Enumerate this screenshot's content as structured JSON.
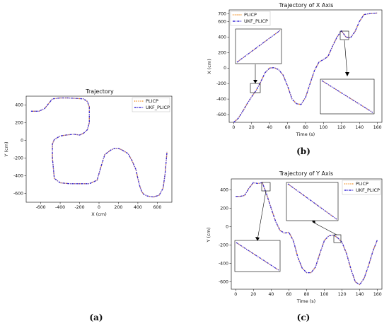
{
  "colors": {
    "plicp": "#f08a1a",
    "ukf": "#3a2bd6"
  },
  "panels": {
    "a": "(a)",
    "b": "(b)",
    "c": "(c)"
  },
  "chart_data": [
    {
      "id": "a",
      "type": "line",
      "title": "Trajectory",
      "xlabel": "X (cm)",
      "ylabel": "Y (cm)",
      "xlim": [
        -750,
        750
      ],
      "ylim": [
        -700,
        500
      ],
      "xticks": [
        -600,
        -400,
        -200,
        0,
        200,
        400,
        600
      ],
      "yticks": [
        400,
        200,
        0,
        -200,
        -400,
        -600
      ],
      "legend_position": "top-right",
      "series": [
        {
          "name": "PLICP",
          "x": [
            -700,
            -620,
            -560,
            -480,
            -400,
            -320,
            -240,
            -160,
            -120,
            -100,
            -100,
            -120,
            -160,
            -200,
            -260,
            -340,
            -400,
            -460,
            -480,
            -480,
            -460,
            -400,
            -300,
            -200,
            -100,
            -20,
            20,
            60,
            120,
            160,
            200,
            240,
            300,
            340,
            380,
            400,
            420,
            440,
            460,
            500,
            560,
            620,
            660,
            680,
            700
          ],
          "y": [
            330,
            330,
            360,
            470,
            480,
            480,
            475,
            470,
            440,
            380,
            200,
            120,
            80,
            60,
            70,
            60,
            50,
            10,
            -40,
            -200,
            -430,
            -480,
            -490,
            -490,
            -490,
            -450,
            -300,
            -160,
            -110,
            -90,
            -90,
            -110,
            -150,
            -230,
            -330,
            -430,
            -520,
            -580,
            -610,
            -630,
            -640,
            -620,
            -540,
            -380,
            -130
          ]
        },
        {
          "name": "UKF_PLICP",
          "x": [
            -700,
            -620,
            -560,
            -480,
            -400,
            -320,
            -240,
            -160,
            -120,
            -100,
            -100,
            -120,
            -160,
            -200,
            -260,
            -340,
            -400,
            -460,
            -480,
            -480,
            -460,
            -400,
            -300,
            -200,
            -100,
            -20,
            20,
            60,
            120,
            160,
            200,
            240,
            300,
            340,
            380,
            400,
            420,
            440,
            460,
            500,
            560,
            620,
            660,
            680,
            700
          ],
          "y": [
            330,
            330,
            360,
            470,
            480,
            480,
            475,
            470,
            440,
            380,
            200,
            120,
            80,
            60,
            70,
            60,
            50,
            10,
            -40,
            -200,
            -430,
            -480,
            -490,
            -490,
            -490,
            -450,
            -300,
            -160,
            -110,
            -90,
            -90,
            -110,
            -150,
            -230,
            -330,
            -430,
            -520,
            -580,
            -610,
            -630,
            -640,
            -620,
            -540,
            -380,
            -130
          ]
        }
      ]
    },
    {
      "id": "b",
      "type": "line",
      "title": "Trajectory of X Axis",
      "xlabel": "Time (s)",
      "ylabel": "X (cm)",
      "xlim": [
        -5,
        165
      ],
      "ylim": [
        -700,
        750
      ],
      "xticks": [
        0,
        20,
        40,
        60,
        80,
        100,
        120,
        140,
        160
      ],
      "yticks": [
        700,
        600,
        400,
        200,
        0,
        -200,
        -400,
        -600
      ],
      "legend_position": "top-left",
      "series": [
        {
          "name": "PLICP",
          "x": [
            0,
            5,
            10,
            15,
            20,
            25,
            30,
            35,
            40,
            45,
            50,
            55,
            60,
            65,
            70,
            75,
            80,
            85,
            90,
            95,
            100,
            105,
            110,
            115,
            120,
            125,
            130,
            135,
            140,
            145,
            150,
            155,
            160
          ],
          "y": [
            -700,
            -650,
            -560,
            -460,
            -370,
            -290,
            -180,
            -60,
            0,
            5,
            -20,
            -90,
            -230,
            -400,
            -460,
            -470,
            -380,
            -200,
            -30,
            80,
            110,
            150,
            280,
            400,
            480,
            400,
            390,
            470,
            600,
            690,
            700,
            705,
            710
          ]
        },
        {
          "name": "UKF_PLICP",
          "x": [
            0,
            5,
            10,
            15,
            20,
            25,
            30,
            35,
            40,
            45,
            50,
            55,
            60,
            65,
            70,
            75,
            80,
            85,
            90,
            95,
            100,
            105,
            110,
            115,
            120,
            125,
            130,
            135,
            140,
            145,
            150,
            155,
            160
          ],
          "y": [
            -700,
            -650,
            -560,
            -460,
            -370,
            -290,
            -180,
            -60,
            0,
            5,
            -20,
            -90,
            -230,
            -400,
            -460,
            -470,
            -380,
            -200,
            -30,
            80,
            110,
            150,
            280,
            400,
            480,
            400,
            390,
            470,
            600,
            690,
            700,
            705,
            710
          ]
        }
      ]
    },
    {
      "id": "c",
      "type": "line",
      "title": "Trajectory of Y Axis",
      "xlabel": "Time (s)",
      "ylabel": "Y (cm)",
      "xlim": [
        -5,
        165
      ],
      "ylim": [
        -680,
        520
      ],
      "xticks": [
        0,
        20,
        40,
        60,
        80,
        100,
        120,
        140,
        160
      ],
      "yticks": [
        400,
        200,
        0,
        -200,
        -400,
        -600
      ],
      "legend_position": "top-right",
      "series": [
        {
          "name": "PLICP",
          "x": [
            0,
            5,
            10,
            15,
            20,
            25,
            30,
            35,
            40,
            45,
            50,
            55,
            60,
            65,
            70,
            75,
            80,
            85,
            90,
            95,
            100,
            105,
            110,
            115,
            120,
            125,
            130,
            135,
            140,
            145,
            150,
            155,
            160
          ],
          "y": [
            330,
            330,
            340,
            420,
            480,
            470,
            480,
            350,
            200,
            60,
            -40,
            -70,
            -60,
            -150,
            -330,
            -450,
            -500,
            -500,
            -440,
            -290,
            -150,
            -100,
            -90,
            -120,
            -170,
            -290,
            -460,
            -600,
            -630,
            -560,
            -420,
            -260,
            -140
          ]
        },
        {
          "name": "UKF_PLICP",
          "x": [
            0,
            5,
            10,
            15,
            20,
            25,
            30,
            35,
            40,
            45,
            50,
            55,
            60,
            65,
            70,
            75,
            80,
            85,
            90,
            95,
            100,
            105,
            110,
            115,
            120,
            125,
            130,
            135,
            140,
            145,
            150,
            155,
            160
          ],
          "y": [
            330,
            330,
            340,
            420,
            480,
            470,
            480,
            350,
            200,
            60,
            -40,
            -70,
            -60,
            -150,
            -330,
            -450,
            -500,
            -500,
            -440,
            -290,
            -150,
            -100,
            -90,
            -120,
            -170,
            -290,
            -460,
            -600,
            -630,
            -560,
            -420,
            -260,
            -140
          ]
        }
      ]
    }
  ]
}
